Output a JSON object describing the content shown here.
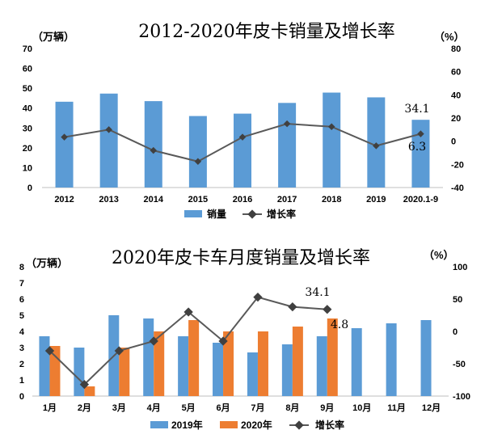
{
  "chart_data": [
    {
      "type": "bar+line",
      "title": "2012-2020年皮卡销量及增长率",
      "y_left_unit": "（万辆）",
      "y_right_unit": "（%）",
      "categories": [
        "2012",
        "2013",
        "2014",
        "2015",
        "2016",
        "2017",
        "2018",
        "2019",
        "2020.1-9"
      ],
      "y_left_ticks": [
        "0",
        "10",
        "20",
        "30",
        "40",
        "50",
        "60",
        "70"
      ],
      "y_right_ticks": [
        "-40",
        "-20",
        "0",
        "20",
        "40",
        "60",
        "80"
      ],
      "ylim_left": [
        0,
        70
      ],
      "ylim_right": [
        -40,
        80
      ],
      "series": [
        {
          "name": "销量",
          "kind": "bar",
          "axis": "left",
          "color": "#5b9bd5",
          "values": [
            43.2,
            47.3,
            43.5,
            36.0,
            37.2,
            42.6,
            47.8,
            45.4,
            34.1
          ]
        },
        {
          "name": "增长率",
          "kind": "line",
          "axis": "right",
          "color": "#595959",
          "values": [
            3.5,
            10.0,
            -8.0,
            -17.5,
            3.5,
            15.0,
            12.5,
            -4.0,
            6.3
          ]
        }
      ],
      "data_labels": [
        {
          "text": "34.1",
          "series": 0,
          "index": 8
        },
        {
          "text": "6.3",
          "series": 1,
          "index": 8
        }
      ],
      "legend": [
        "销量",
        "增长率"
      ],
      "legend_position": "bottom"
    },
    {
      "type": "bar+line",
      "title": "2020年皮卡车月度销量及增长率",
      "y_left_unit": "（万辆）",
      "y_right_unit": "（%）",
      "categories": [
        "1月",
        "2月",
        "3月",
        "4月",
        "5月",
        "6月",
        "7月",
        "8月",
        "9月",
        "10月",
        "11月",
        "12月"
      ],
      "y_left_ticks": [
        "0",
        "1",
        "2",
        "3",
        "4",
        "5",
        "6",
        "7",
        "8"
      ],
      "y_right_ticks": [
        "-100",
        "-50",
        "0",
        "50",
        "100"
      ],
      "ylim_left": [
        0,
        8
      ],
      "ylim_right": [
        -100,
        100
      ],
      "series": [
        {
          "name": "2019年",
          "kind": "bar",
          "axis": "left",
          "color": "#5b9bd5",
          "values": [
            3.7,
            3.0,
            5.0,
            4.8,
            3.7,
            3.3,
            2.7,
            3.2,
            3.7,
            4.2,
            4.5,
            4.7
          ]
        },
        {
          "name": "2020年",
          "kind": "bar",
          "axis": "left",
          "color": "#ed7d31",
          "values": [
            3.1,
            0.6,
            3.0,
            4.0,
            4.7,
            4.0,
            4.0,
            4.3,
            4.8,
            null,
            null,
            null
          ]
        },
        {
          "name": "增长率",
          "kind": "line",
          "axis": "right",
          "color": "#595959",
          "values": [
            -30,
            -82,
            -30,
            -15,
            30,
            -15,
            53,
            38,
            34.1,
            null,
            null,
            null
          ]
        }
      ],
      "data_labels": [
        {
          "text": "34.1",
          "series": 2,
          "index": 8
        },
        {
          "text": "4.8",
          "series": 1,
          "index": 8
        }
      ],
      "legend": [
        "2019年",
        "2020年",
        "增长率"
      ],
      "legend_position": "bottom"
    }
  ]
}
